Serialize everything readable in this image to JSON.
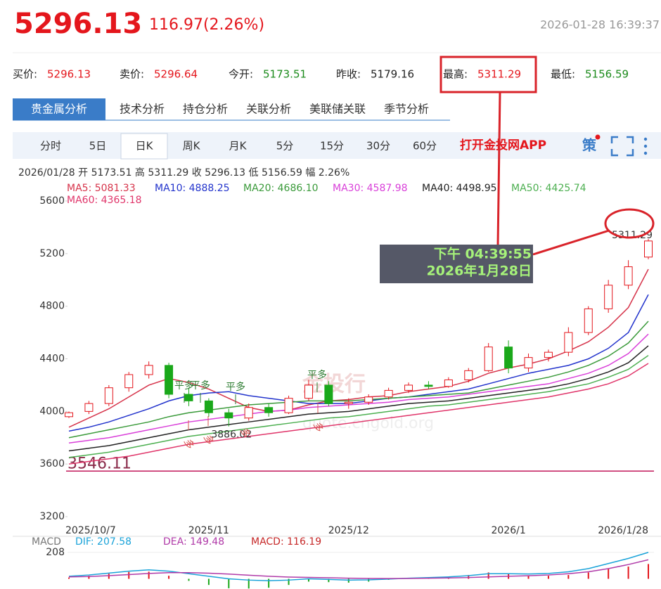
{
  "header": {
    "price": "5296.13",
    "change": "116.97(2.26%)",
    "time": "2026-01-28 16:39:37"
  },
  "quotes": [
    {
      "label": "买价:",
      "value": "5296.13",
      "color": "#e4161c"
    },
    {
      "label": "卖价:",
      "value": "5296.64",
      "color": "#e4161c"
    },
    {
      "label": "今开:",
      "value": "5173.51",
      "color": "#1a8a1a"
    },
    {
      "label": "昨收:",
      "value": "5179.16",
      "color": "#222222"
    },
    {
      "label": "最高:",
      "value": "5311.29",
      "color": "#e4161c"
    },
    {
      "label": "最低:",
      "value": "5156.59",
      "color": "#1a8a1a"
    }
  ],
  "tabs": [
    "贵金属分析",
    "技术分析",
    "持仓分析",
    "关联分析",
    "美联储关联",
    "季节分析"
  ],
  "periods": [
    "分时",
    "5日",
    "日K",
    "周K",
    "月K",
    "5分",
    "15分",
    "30分",
    "60分"
  ],
  "selected_period": "日K",
  "app_link": "打开金投网APP",
  "strategy_icon": "策",
  "ohlc_line": "2026/01/28  开 5173.51  高 5311.29  收 5296.13  低 5156.59  幅 2.26%",
  "tooltip": {
    "time": "下午 04:39:55",
    "date": "2026年1月28日"
  },
  "signals": [
    "平多",
    "平多",
    "平多",
    "平多",
    "多",
    "多",
    "多",
    "多"
  ],
  "watermark": [
    "金投行",
    "quote.cngold.org"
  ],
  "chart_data": [
    {
      "type": "candlestick",
      "categories": [
        "2025/10/7",
        null,
        null,
        null,
        null,
        null,
        null,
        "2025/11",
        null,
        null,
        null,
        null,
        null,
        null,
        "2025/12",
        null,
        null,
        null,
        null,
        null,
        null,
        null,
        "2026/1",
        null,
        null,
        null,
        null,
        null,
        null,
        "2026/1/28"
      ],
      "open": [
        3960,
        4000,
        4060,
        4180,
        4280,
        4350,
        4130,
        4080,
        3990,
        3950,
        4030,
        3990,
        4100,
        4200,
        4060,
        4070,
        4110,
        4160,
        4200,
        4190,
        4240,
        4310,
        4490,
        4330,
        4410,
        4450,
        4600,
        4780,
        4960,
        5173.51
      ],
      "high": [
        4000,
        4080,
        4200,
        4300,
        4380,
        4370,
        4180,
        4100,
        4020,
        4060,
        4060,
        4120,
        4240,
        4230,
        4100,
        4130,
        4180,
        4220,
        4230,
        4260,
        4330,
        4520,
        4540,
        4440,
        4470,
        4640,
        4800,
        5000,
        5150,
        5311.29
      ],
      "low": [
        3950,
        3980,
        4040,
        4150,
        4250,
        4100,
        4040,
        3960,
        3886.02,
        3930,
        3960,
        3980,
        4080,
        4040,
        4020,
        4050,
        4090,
        4140,
        4170,
        4180,
        4220,
        4300,
        4290,
        4300,
        4380,
        4420,
        4580,
        4750,
        4930,
        5156.59
      ],
      "close": [
        3990,
        4060,
        4180,
        4280,
        4350,
        4130,
        4080,
        3990,
        3950,
        4030,
        3990,
        4100,
        4200,
        4060,
        4070,
        4110,
        4160,
        4200,
        4190,
        4240,
        4310,
        4490,
        4330,
        4410,
        4450,
        4600,
        4780,
        4960,
        5100,
        5296.13
      ],
      "up_color": "#e4161c",
      "down_color": "#1aa81a",
      "series": [
        {
          "name": "MA5",
          "label": "MA5: 5081.33",
          "color": "#d6334a",
          "values": [
            3880,
            3950,
            4020,
            4110,
            4200,
            4250,
            4220,
            4170,
            4100,
            4030,
            4000,
            4010,
            4050,
            4080,
            4090,
            4110,
            4120,
            4150,
            4170,
            4190,
            4230,
            4290,
            4330,
            4360,
            4400,
            4460,
            4530,
            4640,
            4790,
            5081.33
          ]
        },
        {
          "name": "MA10",
          "label": "MA10: 4888.25",
          "color": "#2233cc",
          "values": [
            3850,
            3880,
            3920,
            3970,
            4020,
            4080,
            4120,
            4140,
            4150,
            4120,
            4100,
            4080,
            4060,
            4060,
            4060,
            4080,
            4100,
            4110,
            4130,
            4150,
            4170,
            4210,
            4250,
            4290,
            4320,
            4350,
            4400,
            4480,
            4600,
            4888.25
          ]
        },
        {
          "name": "MA20",
          "label": "MA20: 4686.10",
          "color": "#3a9a3a",
          "values": [
            3800,
            3830,
            3860,
            3890,
            3920,
            3960,
            3990,
            4010,
            4030,
            4050,
            4060,
            4070,
            4080,
            4080,
            4080,
            4090,
            4100,
            4110,
            4120,
            4130,
            4140,
            4170,
            4200,
            4230,
            4260,
            4300,
            4350,
            4420,
            4520,
            4686.1
          ]
        },
        {
          "name": "MA30",
          "label": "MA30: 4587.98",
          "color": "#d93fd9",
          "values": [
            3760,
            3780,
            3800,
            3830,
            3860,
            3890,
            3920,
            3940,
            3960,
            3980,
            4000,
            4010,
            4030,
            4040,
            4050,
            4060,
            4070,
            4090,
            4100,
            4110,
            4130,
            4150,
            4170,
            4190,
            4210,
            4250,
            4290,
            4350,
            4440,
            4587.98
          ]
        },
        {
          "name": "MA40",
          "label": "MA40: 4498.95",
          "color": "#222222",
          "values": [
            3700,
            3720,
            3740,
            3770,
            3800,
            3830,
            3860,
            3880,
            3900,
            3920,
            3940,
            3960,
            3980,
            3990,
            4000,
            4020,
            4040,
            4060,
            4070,
            4080,
            4100,
            4120,
            4140,
            4160,
            4180,
            4210,
            4250,
            4300,
            4370,
            4498.95
          ]
        },
        {
          "name": "MA50",
          "label": "MA50: 4425.74",
          "color": "#4caf50",
          "values": [
            3650,
            3670,
            3690,
            3720,
            3750,
            3780,
            3810,
            3830,
            3850,
            3870,
            3890,
            3910,
            3930,
            3950,
            3960,
            3980,
            4000,
            4020,
            4040,
            4050,
            4070,
            4090,
            4110,
            4130,
            4150,
            4180,
            4210,
            4260,
            4320,
            4425.74
          ]
        },
        {
          "name": "MA60",
          "label": "MA60: 4365.18",
          "color": "#e0356a",
          "values": [
            3600,
            3620,
            3640,
            3660,
            3690,
            3720,
            3750,
            3770,
            3790,
            3810,
            3830,
            3850,
            3870,
            3890,
            3910,
            3930,
            3950,
            3970,
            3990,
            4010,
            4030,
            4050,
            4070,
            4090,
            4110,
            4140,
            4170,
            4210,
            4270,
            4365.18
          ]
        }
      ],
      "hline": {
        "value": 3546.11,
        "color": "#c2185b"
      },
      "ylim": [
        3120,
        5680
      ],
      "yticks": [
        3200,
        3600,
        4000,
        4400,
        4800,
        5200,
        5600
      ]
    },
    {
      "type": "macd",
      "title": "MACD",
      "series": [
        {
          "name": "DIF",
          "label": "DIF: 207.58",
          "color": "#1aa3d9",
          "values": [
            20,
            30,
            45,
            60,
            70,
            60,
            40,
            20,
            0,
            -10,
            -15,
            -10,
            0,
            -5,
            -10,
            -8,
            -2,
            5,
            10,
            15,
            25,
            40,
            40,
            38,
            42,
            55,
            80,
            120,
            160,
            207.58
          ]
        },
        {
          "name": "DEA",
          "label": "DEA: 149.48",
          "color": "#b03aa8",
          "values": [
            15,
            18,
            25,
            33,
            42,
            48,
            48,
            44,
            37,
            28,
            20,
            14,
            11,
            8,
            5,
            3,
            2,
            3,
            5,
            7,
            10,
            15,
            20,
            24,
            30,
            40,
            55,
            80,
            112,
            149.48
          ]
        },
        {
          "name": "MACD",
          "label": "MACD: 116.19",
          "color": "#c62828",
          "values": [
            10,
            24,
            40,
            54,
            56,
            24,
            -16,
            -48,
            -74,
            -76,
            -70,
            -48,
            -22,
            -26,
            -30,
            -22,
            -8,
            4,
            10,
            16,
            30,
            50,
            40,
            28,
            24,
            30,
            50,
            80,
            96,
            116.19
          ]
        }
      ],
      "up_color": "#e4161c",
      "down_color": "#1aa81a",
      "ylim": [
        -80,
        240
      ],
      "yticks": [
        208
      ]
    }
  ]
}
